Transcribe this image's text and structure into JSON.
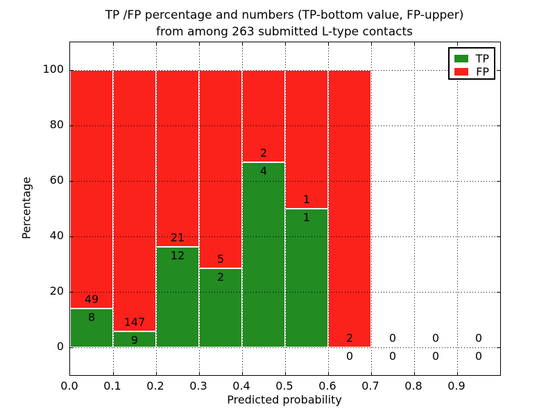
{
  "title": {
    "line1": "TP /FP percentage and numbers (TP-bottom value, FP-upper)",
    "line2": "from among 263 submitted L-type contacts"
  },
  "chart_data": {
    "type": "bar",
    "stacked": true,
    "title": "TP /FP percentage and numbers (TP-bottom value, FP-upper)\nfrom among 263 submitted L-type contacts",
    "xlabel": "Predicted probability",
    "ylabel": "Percentage",
    "xlim": [
      0.0,
      1.0
    ],
    "ylim": [
      -10,
      110
    ],
    "x_tick_labels": [
      "0.0",
      "0.1",
      "0.2",
      "0.3",
      "0.4",
      "0.5",
      "0.6",
      "0.7",
      "0.8",
      "0.9"
    ],
    "y_tick_values": [
      0,
      20,
      40,
      60,
      80,
      100
    ],
    "bin_width": 0.1,
    "bin_starts": [
      0.0,
      0.1,
      0.2,
      0.3,
      0.4,
      0.5,
      0.6,
      0.7,
      0.8,
      0.9
    ],
    "total_contacts": 263,
    "grid": {
      "visible": true,
      "style": "dotted",
      "color": "#000000"
    },
    "legend": {
      "position": "upper-right"
    },
    "series": [
      {
        "name": "TP",
        "color": "#228b22",
        "counts": [
          8,
          9,
          12,
          2,
          4,
          1,
          0,
          0,
          0,
          0
        ]
      },
      {
        "name": "FP",
        "color": "#fb221b",
        "counts": [
          49,
          147,
          21,
          5,
          2,
          1,
          2,
          0,
          0,
          0
        ]
      }
    ],
    "tp_percent_of_bin": [
      14.04,
      5.77,
      36.36,
      28.57,
      66.67,
      50.0,
      0.0,
      0.0,
      0.0,
      0.0
    ]
  }
}
